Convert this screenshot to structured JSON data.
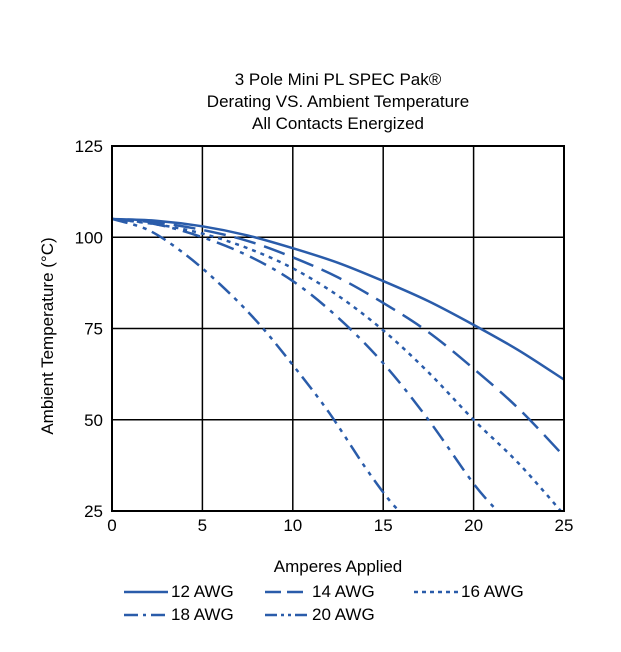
{
  "chart_data": {
    "type": "line",
    "title": [
      "3 Pole Mini PL SPEC Pak®",
      "Derating VS. Ambient Temperature",
      "All Contacts Energized"
    ],
    "xlabel": "Amperes Applied",
    "ylabel": "Ambient Temperature (°C)",
    "xlim": [
      0,
      25
    ],
    "ylim": [
      25,
      125
    ],
    "xticks": [
      "0",
      "5",
      "10",
      "15",
      "20",
      "25"
    ],
    "yticks": [
      "25",
      "50",
      "75",
      "100",
      "125"
    ],
    "grid": true,
    "legend_position": "bottom",
    "line_color": "#2a5caa",
    "series": [
      {
        "name": "12 AWG",
        "style": "solid",
        "x": [
          0,
          2.5,
          5,
          7.5,
          10,
          12.5,
          15,
          17.5,
          20,
          22.5,
          25
        ],
        "y": [
          105,
          104.5,
          103,
          100.5,
          97,
          93,
          88,
          82.5,
          76,
          69,
          61
        ]
      },
      {
        "name": "14 AWG",
        "style": "dash",
        "x": [
          0,
          2.5,
          5,
          7.5,
          10,
          12.5,
          15,
          17.5,
          20,
          22.5,
          25
        ],
        "y": [
          105,
          104,
          102,
          99,
          94.5,
          89,
          82,
          74,
          64,
          53,
          40
        ]
      },
      {
        "name": "16 AWG",
        "style": "dot",
        "x": [
          0,
          2.5,
          5,
          7.5,
          10,
          12.5,
          15,
          17.5,
          20,
          22.5,
          25
        ],
        "y": [
          105,
          103.5,
          101,
          97,
          91.5,
          84,
          74.5,
          63,
          50,
          38,
          24
        ]
      },
      {
        "name": "18 AWG",
        "style": "dashdot",
        "x": [
          0,
          2.5,
          5,
          7.5,
          10,
          12.5,
          15,
          17.5,
          20,
          21.5
        ],
        "y": [
          105,
          103.5,
          100,
          95,
          88,
          78,
          65.5,
          50,
          32.5,
          24
        ]
      },
      {
        "name": "20 AWG",
        "style": "dashdotdot",
        "x": [
          0,
          2,
          4,
          6,
          8,
          10,
          12,
          14,
          15.5,
          16.4
        ],
        "y": [
          105,
          102,
          95.5,
          87,
          77,
          65,
          52,
          37,
          27,
          23
        ]
      }
    ]
  }
}
